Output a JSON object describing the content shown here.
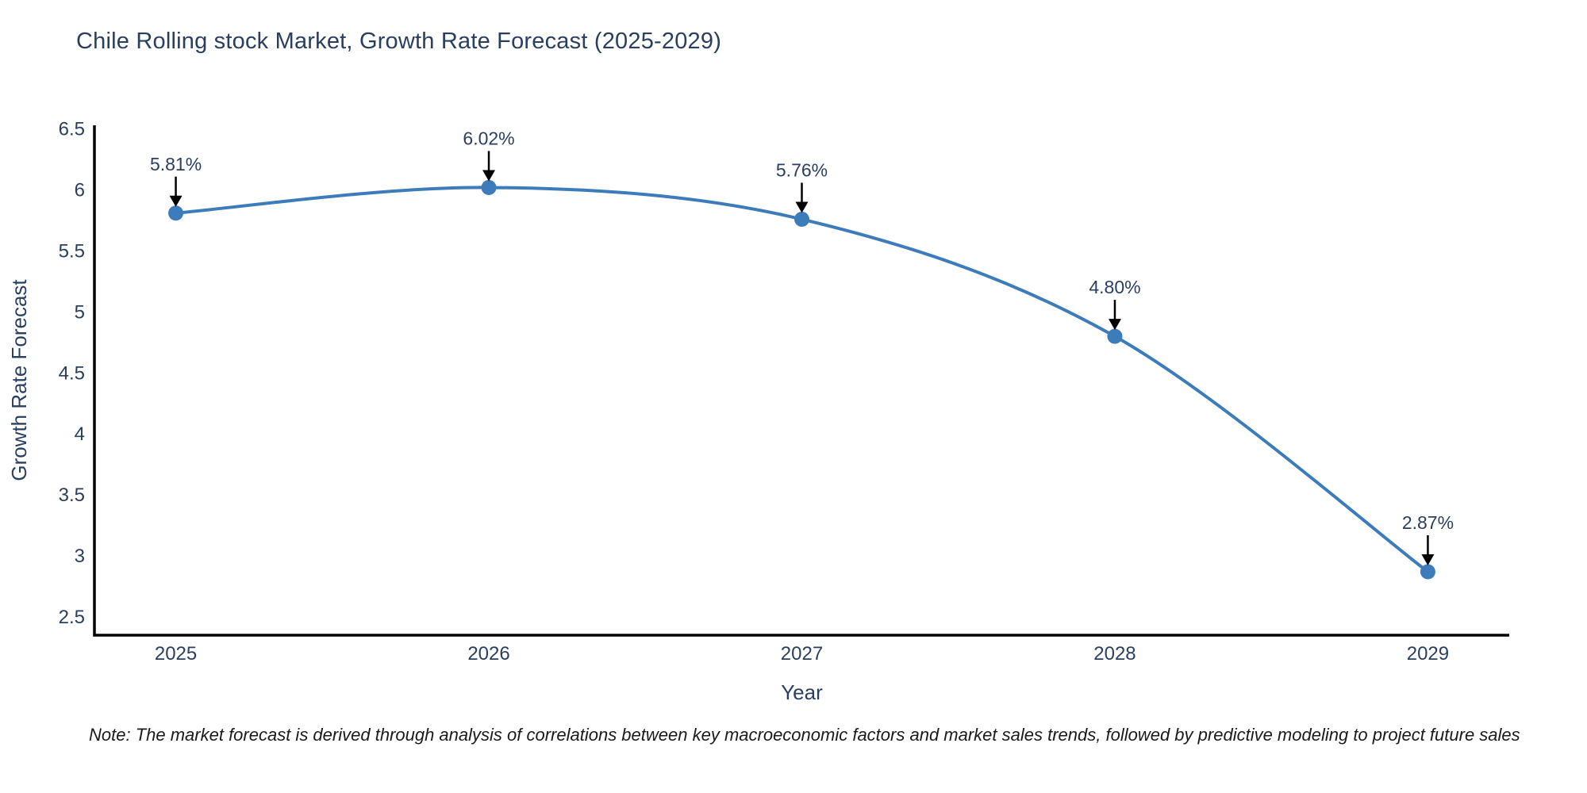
{
  "page": {
    "background": "#ffffff"
  },
  "chart_data": {
    "type": "line",
    "title": "Chile Rolling stock Market, Growth Rate Forecast (2025-2029)",
    "xlabel": "Year",
    "ylabel": "Growth Rate Forecast",
    "x": [
      2025,
      2026,
      2027,
      2028,
      2029
    ],
    "values": [
      5.81,
      6.02,
      5.76,
      4.8,
      2.87
    ],
    "point_labels": [
      "5.81%",
      "6.02%",
      "5.76%",
      "4.80%",
      "2.87%"
    ],
    "xticks": [
      2025,
      2026,
      2027,
      2028,
      2029
    ],
    "xtick_labels": [
      "2025",
      "2026",
      "2027",
      "2028",
      "2029"
    ],
    "yticks": [
      2.5,
      3,
      3.5,
      4,
      4.5,
      5,
      5.5,
      6,
      6.5
    ],
    "ytick_labels": [
      "2.5",
      "3",
      "3.5",
      "4",
      "4.5",
      "5",
      "5.5",
      "6",
      "6.5"
    ],
    "xlim": [
      2024.74,
      2029.26
    ],
    "ylim": [
      2.35,
      6.53
    ],
    "line_shape": "spline",
    "grid": false,
    "legend": false,
    "line_color": "#3d7cba",
    "marker_color": "#3d7cba",
    "axis_color": "#000000",
    "font_color": "#2a3f5f",
    "annotation_color": "#2a3f5f",
    "note": "Note: The market forecast is derived through analysis of correlations between key macroeconomic factors and market sales trends, followed by predictive modeling to project future sales"
  }
}
